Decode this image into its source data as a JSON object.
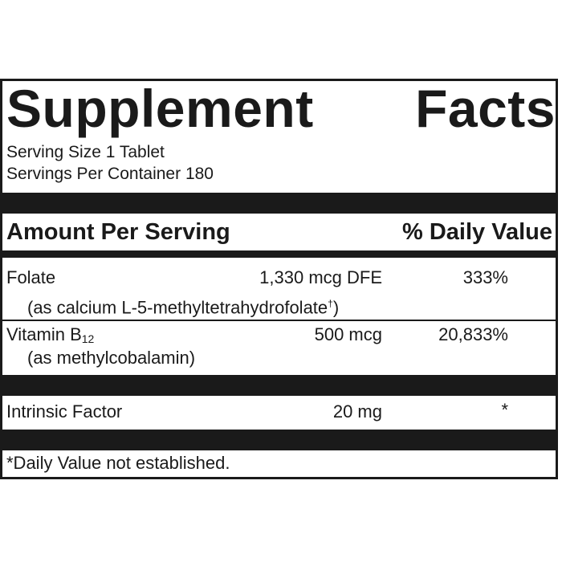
{
  "title_left": "Supplement",
  "title_right": "Facts",
  "serving_size": "Serving Size 1 Tablet",
  "servings_per_container": "Servings Per Container 180",
  "header": {
    "amount_per_serving": "Amount Per Serving",
    "daily_value": "% Daily Value"
  },
  "nutrients": {
    "folate": {
      "name": "Folate",
      "sub": "(as calcium L-5-methyltetrahydrofolate",
      "sub_mark": "†",
      "sub_close": ")",
      "amount": "1,330 mcg DFE",
      "dv": "333%"
    },
    "b12": {
      "name_base": "Vitamin B",
      "name_sub": "12",
      "sub": "(as methylcobalamin)",
      "amount": "500 mcg",
      "dv": "20,833%"
    },
    "intrinsic": {
      "name": "Intrinsic Factor",
      "amount": "20 mg",
      "dv": "*"
    }
  },
  "footnote": "*Daily Value not established."
}
